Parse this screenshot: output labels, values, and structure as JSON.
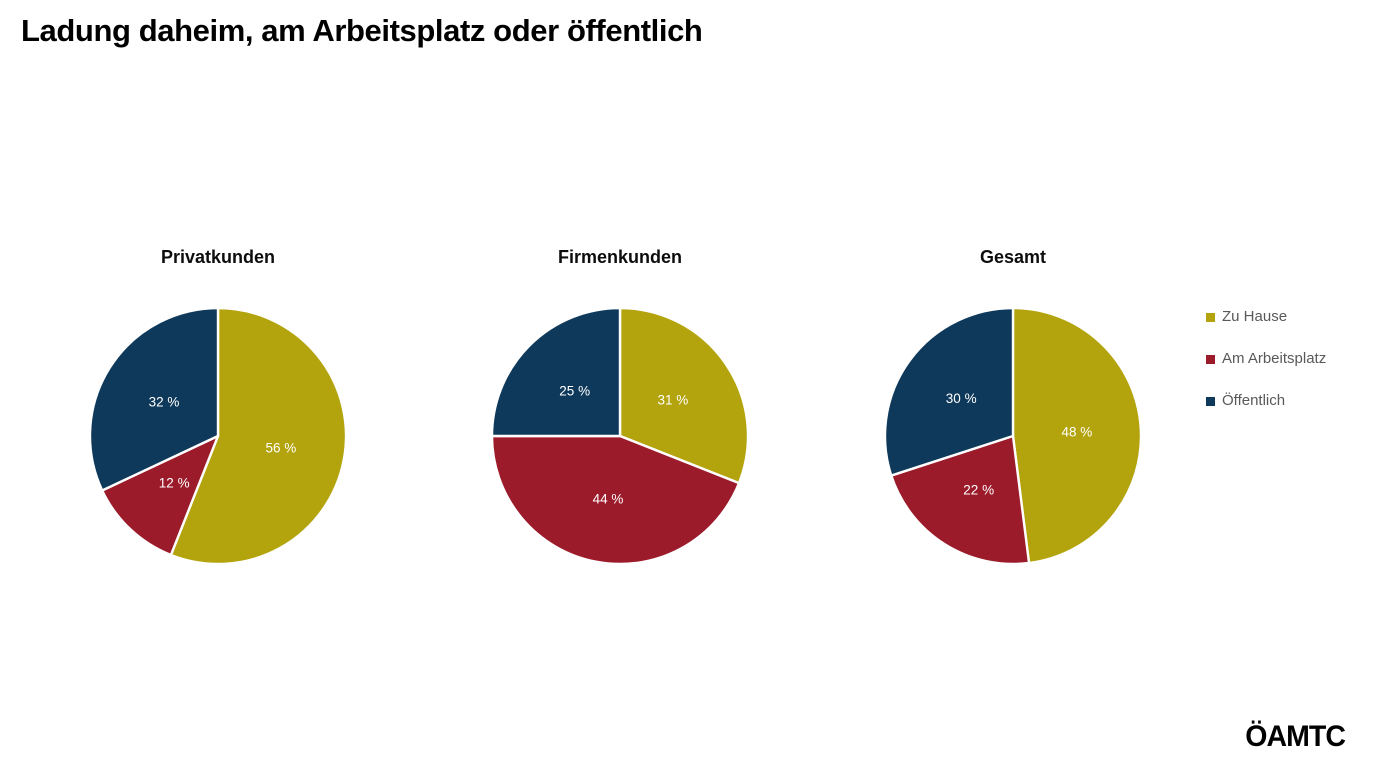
{
  "title": "Ladung daheim, am Arbeitsplatz oder öffentlich",
  "logo": {
    "text": "ÖAMTC"
  },
  "colors": {
    "background": "#FFFFFF",
    "title_text": "#000000",
    "chart_title_text": "#0D0D0D",
    "legend_text": "#595959",
    "label_text": "#FFFFFF",
    "slice_border": "#FFFFFF",
    "zu_hause": "#B3A30C",
    "am_arbeitsplatz": "#9C1B2A",
    "oeffentlich": "#0F395B"
  },
  "legend": {
    "position": "right",
    "items": [
      {
        "label": "Zu Hause",
        "color": "#B3A30C"
      },
      {
        "label": "Am Arbeitsplatz",
        "color": "#9C1B2A"
      },
      {
        "label": "Öffentlich",
        "color": "#0F395B"
      }
    ]
  },
  "chart_data": [
    {
      "type": "pie",
      "title": "Privatkunden",
      "categories": [
        "Zu Hause",
        "Am Arbeitsplatz",
        "Öffentlich"
      ],
      "values": [
        56,
        12,
        32
      ],
      "labels": [
        "56 %",
        "12 %",
        "32 %"
      ],
      "colors": [
        "#B3A30C",
        "#9C1B2A",
        "#0F395B"
      ],
      "start_angle_deg": 0,
      "direction": "clockwise"
    },
    {
      "type": "pie",
      "title": "Firmenkunden",
      "categories": [
        "Zu Hause",
        "Am Arbeitsplatz",
        "Öffentlich"
      ],
      "values": [
        31,
        44,
        25
      ],
      "labels": [
        "31 %",
        "44 %",
        "25 %"
      ],
      "colors": [
        "#B3A30C",
        "#9C1B2A",
        "#0F395B"
      ],
      "start_angle_deg": 0,
      "direction": "clockwise"
    },
    {
      "type": "pie",
      "title": "Gesamt",
      "categories": [
        "Zu Hause",
        "Am Arbeitsplatz",
        "Öffentlich"
      ],
      "values": [
        48,
        22,
        30
      ],
      "labels": [
        "48 %",
        "22 %",
        "30 %"
      ],
      "colors": [
        "#B3A30C",
        "#9C1B2A",
        "#0F395B"
      ],
      "start_angle_deg": 0,
      "direction": "clockwise"
    }
  ]
}
